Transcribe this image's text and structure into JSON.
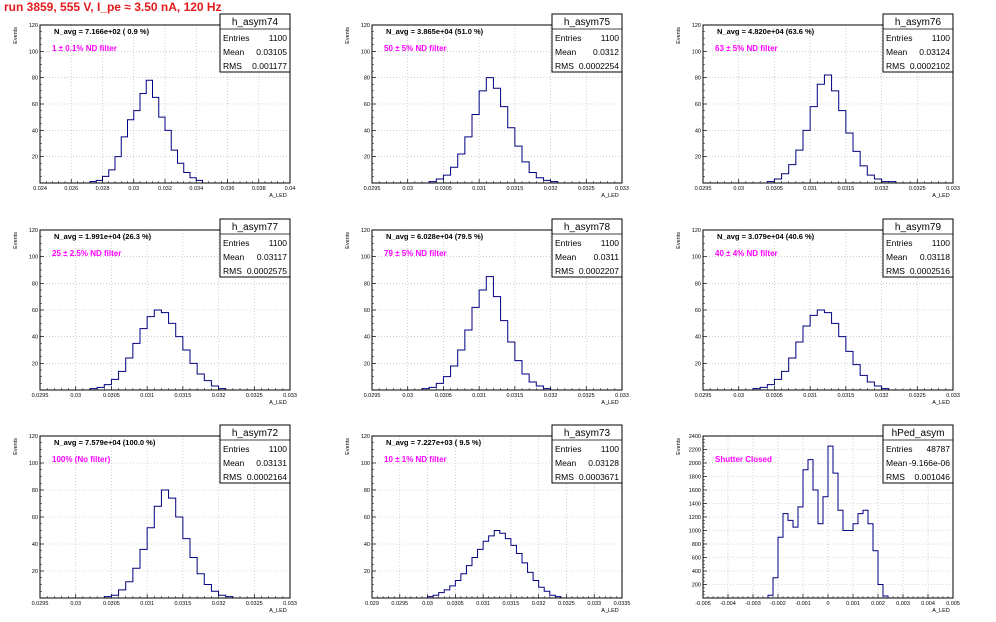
{
  "header": {
    "run_title": "run 3859,   555 V, I_pe ≈ 3.50 nA, 120 Hz"
  },
  "stat_labels": {
    "entries": "Entries",
    "mean": "Mean",
    "rms": "RMS"
  },
  "colors": {
    "histogram": "#000080",
    "filter_text": "#ff00ff",
    "run_title": "#e41a1c",
    "grid": "#b0b0b0",
    "frame": "#000000"
  },
  "chart_data": [
    {
      "type": "bar",
      "title": "h_asym74",
      "ylabel": "Events",
      "xlabel": "A_LED",
      "navg": "N_avg = 7.166e+02 ( 0.9 %)",
      "filter": "1 ± 0.1% ND filter",
      "stats": {
        "entries": "1100",
        "mean": "0.03105",
        "rms": "0.001177"
      },
      "xlim": [
        0.024,
        0.04
      ],
      "ylim": [
        0,
        120
      ],
      "xticks": [
        "0.024",
        "0.026",
        "0.028",
        "0.03",
        "0.032",
        "0.034",
        "0.036",
        "0.038",
        "0.04"
      ],
      "xtick_values": [
        0.024,
        0.026,
        0.028,
        0.03,
        0.032,
        0.034,
        0.036,
        0.038,
        0.04
      ],
      "yticks": [
        "20",
        "40",
        "60",
        "80",
        "100",
        "120"
      ],
      "ytick_values": [
        20,
        40,
        60,
        80,
        100,
        120
      ],
      "bin_centers": [
        0.0274,
        0.0278,
        0.0282,
        0.0286,
        0.029,
        0.0294,
        0.0298,
        0.0302,
        0.0306,
        0.031,
        0.0314,
        0.0318,
        0.0322,
        0.0326,
        0.033,
        0.0334,
        0.0338,
        0.0342
      ],
      "values": [
        1,
        2,
        5,
        10,
        20,
        35,
        48,
        55,
        68,
        78,
        65,
        50,
        40,
        25,
        15,
        8,
        4,
        2
      ]
    },
    {
      "type": "bar",
      "title": "h_asym75",
      "ylabel": "Events",
      "xlabel": "A_LED",
      "navg": "N_avg = 3.865e+04 (51.0 %)",
      "filter": "50 ± 5% ND filter",
      "stats": {
        "entries": "1100",
        "mean": "0.0312",
        "rms": "0.0002254"
      },
      "xlim": [
        0.0295,
        0.033
      ],
      "ylim": [
        0,
        120
      ],
      "xticks": [
        "0.0295",
        "0.03",
        "0.0305",
        "0.031",
        "0.0315",
        "0.032",
        "0.0325",
        "0.033"
      ],
      "xtick_values": [
        0.0295,
        0.03,
        0.0305,
        0.031,
        0.0315,
        0.032,
        0.0325,
        0.033
      ],
      "yticks": [
        "20",
        "40",
        "60",
        "80",
        "100",
        "120"
      ],
      "ytick_values": [
        20,
        40,
        60,
        80,
        100,
        120
      ],
      "bin_centers": [
        0.03035,
        0.03045,
        0.03055,
        0.03065,
        0.03075,
        0.03085,
        0.03095,
        0.03105,
        0.03115,
        0.03125,
        0.03135,
        0.03145,
        0.03155,
        0.03165,
        0.03175,
        0.03185,
        0.03195,
        0.03205
      ],
      "values": [
        1,
        3,
        6,
        12,
        22,
        35,
        52,
        70,
        80,
        72,
        58,
        42,
        28,
        16,
        8,
        4,
        2,
        1
      ]
    },
    {
      "type": "bar",
      "title": "h_asym76",
      "ylabel": "Events",
      "xlabel": "A_LED",
      "navg": "N_avg = 4.820e+04 (63.6 %)",
      "filter": "63 ± 5% ND filter",
      "stats": {
        "entries": "1100",
        "mean": "0.03124",
        "rms": "0.0002102"
      },
      "xlim": [
        0.0295,
        0.033
      ],
      "ylim": [
        0,
        120
      ],
      "xticks": [
        "0.0295",
        "0.03",
        "0.0305",
        "0.031",
        "0.0315",
        "0.032",
        "0.0325",
        "0.033"
      ],
      "xtick_values": [
        0.0295,
        0.03,
        0.0305,
        0.031,
        0.0315,
        0.032,
        0.0325,
        0.033
      ],
      "yticks": [
        "20",
        "40",
        "60",
        "80",
        "100",
        "120"
      ],
      "ytick_values": [
        20,
        40,
        60,
        80,
        100,
        120
      ],
      "bin_centers": [
        0.03045,
        0.03055,
        0.03065,
        0.03075,
        0.03085,
        0.03095,
        0.03105,
        0.03115,
        0.03125,
        0.03135,
        0.03145,
        0.03155,
        0.03165,
        0.03175,
        0.03185,
        0.03195,
        0.03205,
        0.03215
      ],
      "values": [
        1,
        3,
        7,
        14,
        25,
        40,
        58,
        75,
        82,
        70,
        55,
        38,
        24,
        13,
        6,
        3,
        1,
        1
      ]
    },
    {
      "type": "bar",
      "title": "h_asym77",
      "ylabel": "Events",
      "xlabel": "A_LED",
      "navg": "N_avg = 1.991e+04 (26.3 %)",
      "filter": "25 ± 2.5% ND filter",
      "stats": {
        "entries": "1100",
        "mean": "0.03117",
        "rms": "0.0002575"
      },
      "xlim": [
        0.0295,
        0.033
      ],
      "ylim": [
        0,
        120
      ],
      "xticks": [
        "0.0295",
        "0.03",
        "0.0305",
        "0.031",
        "0.0315",
        "0.032",
        "0.0325",
        "0.033"
      ],
      "xtick_values": [
        0.0295,
        0.03,
        0.0305,
        0.031,
        0.0315,
        0.032,
        0.0325,
        0.033
      ],
      "yticks": [
        "20",
        "40",
        "60",
        "80",
        "100",
        "120"
      ],
      "ytick_values": [
        20,
        40,
        60,
        80,
        100,
        120
      ],
      "bin_centers": [
        0.03025,
        0.03035,
        0.03045,
        0.03055,
        0.03065,
        0.03075,
        0.03085,
        0.03095,
        0.03105,
        0.03115,
        0.03125,
        0.03135,
        0.03145,
        0.03155,
        0.03165,
        0.03175,
        0.03185,
        0.03195,
        0.03205
      ],
      "values": [
        1,
        2,
        4,
        8,
        14,
        24,
        35,
        46,
        55,
        60,
        58,
        50,
        40,
        30,
        20,
        12,
        7,
        3,
        1
      ]
    },
    {
      "type": "bar",
      "title": "h_asym78",
      "ylabel": "Events",
      "xlabel": "A_LED",
      "navg": "N_avg = 6.028e+04 (79.5 %)",
      "filter": "79 ± 5% ND filter",
      "stats": {
        "entries": "1100",
        "mean": "0.0311",
        "rms": "0.0002207"
      },
      "xlim": [
        0.0295,
        0.033
      ],
      "ylim": [
        0,
        120
      ],
      "xticks": [
        "0.0295",
        "0.03",
        "0.0305",
        "0.031",
        "0.0315",
        "0.032",
        "0.0325",
        "0.033"
      ],
      "xtick_values": [
        0.0295,
        0.03,
        0.0305,
        0.031,
        0.0315,
        0.032,
        0.0325,
        0.033
      ],
      "yticks": [
        "20",
        "40",
        "60",
        "80",
        "100",
        "120"
      ],
      "ytick_values": [
        20,
        40,
        60,
        80,
        100,
        120
      ],
      "bin_centers": [
        0.03025,
        0.03035,
        0.03045,
        0.03055,
        0.03065,
        0.03075,
        0.03085,
        0.03095,
        0.03105,
        0.03115,
        0.03125,
        0.03135,
        0.03145,
        0.03155,
        0.03165,
        0.03175,
        0.03185,
        0.03195
      ],
      "values": [
        1,
        2,
        5,
        10,
        18,
        30,
        45,
        62,
        75,
        85,
        70,
        52,
        36,
        22,
        12,
        6,
        3,
        1
      ]
    },
    {
      "type": "bar",
      "title": "h_asym79",
      "ylabel": "Events",
      "xlabel": "A_LED",
      "navg": "N_avg = 3.079e+04 (40.6 %)",
      "filter": "40 ± 4% ND filter",
      "stats": {
        "entries": "1100",
        "mean": "0.03118",
        "rms": "0.0002516"
      },
      "xlim": [
        0.0295,
        0.033
      ],
      "ylim": [
        0,
        120
      ],
      "xticks": [
        "0.0295",
        "0.03",
        "0.0305",
        "0.031",
        "0.0315",
        "0.032",
        "0.0325",
        "0.033"
      ],
      "xtick_values": [
        0.0295,
        0.03,
        0.0305,
        0.031,
        0.0315,
        0.032,
        0.0325,
        0.033
      ],
      "yticks": [
        "20",
        "40",
        "60",
        "80",
        "100",
        "120"
      ],
      "ytick_values": [
        20,
        40,
        60,
        80,
        100,
        120
      ],
      "bin_centers": [
        0.03025,
        0.03035,
        0.03045,
        0.03055,
        0.03065,
        0.03075,
        0.03085,
        0.03095,
        0.03105,
        0.03115,
        0.03125,
        0.03135,
        0.03145,
        0.03155,
        0.03165,
        0.03175,
        0.03185,
        0.03195,
        0.03205
      ],
      "values": [
        1,
        2,
        4,
        8,
        14,
        24,
        36,
        48,
        56,
        60,
        58,
        50,
        40,
        29,
        19,
        11,
        6,
        3,
        1
      ]
    },
    {
      "type": "bar",
      "title": "h_asym72",
      "ylabel": "Events",
      "xlabel": "A_LED",
      "navg": "N_avg = 7.579e+04 (100.0 %)",
      "filter": "100% (No filter)",
      "stats": {
        "entries": "1100",
        "mean": "0.03131",
        "rms": "0.0002164"
      },
      "xlim": [
        0.0295,
        0.033
      ],
      "ylim": [
        0,
        120
      ],
      "xticks": [
        "0.0295",
        "0.03",
        "0.0305",
        "0.031",
        "0.0315",
        "0.032",
        "0.0325",
        "0.033"
      ],
      "xtick_values": [
        0.0295,
        0.03,
        0.0305,
        0.031,
        0.0315,
        0.032,
        0.0325,
        0.033
      ],
      "yticks": [
        "20",
        "40",
        "60",
        "80",
        "100",
        "120"
      ],
      "ytick_values": [
        20,
        40,
        60,
        80,
        100,
        120
      ],
      "bin_centers": [
        0.03045,
        0.03055,
        0.03065,
        0.03075,
        0.03085,
        0.03095,
        0.03105,
        0.03115,
        0.03125,
        0.03135,
        0.03145,
        0.03155,
        0.03165,
        0.03175,
        0.03185,
        0.03195,
        0.03205,
        0.03215
      ],
      "values": [
        1,
        2,
        6,
        12,
        22,
        36,
        52,
        68,
        80,
        74,
        60,
        44,
        30,
        18,
        10,
        5,
        2,
        1
      ]
    },
    {
      "type": "bar",
      "title": "h_asym73",
      "ylabel": "Events",
      "xlabel": "A_LED",
      "navg": "N_avg = 7.227e+03 ( 9.5 %)",
      "filter": "10 ± 1% ND filter",
      "stats": {
        "entries": "1100",
        "mean": "0.03128",
        "rms": "0.0003671"
      },
      "xlim": [
        0.029,
        0.0335
      ],
      "ylim": [
        0,
        120
      ],
      "xticks": [
        "0.029",
        "0.0295",
        "0.03",
        "0.0305",
        "0.031",
        "0.0315",
        "0.032",
        "0.0325",
        "0.033",
        "0.0335"
      ],
      "xtick_values": [
        0.029,
        0.0295,
        0.03,
        0.0305,
        0.031,
        0.0315,
        0.032,
        0.0325,
        0.033,
        0.0335
      ],
      "yticks": [
        "20",
        "40",
        "60",
        "80",
        "100",
        "120"
      ],
      "ytick_values": [
        20,
        40,
        60,
        80,
        100,
        120
      ],
      "bin_centers": [
        0.03005,
        0.03015,
        0.03025,
        0.03035,
        0.03045,
        0.03055,
        0.03065,
        0.03075,
        0.03085,
        0.03095,
        0.03105,
        0.03115,
        0.03125,
        0.03135,
        0.03145,
        0.03155,
        0.03165,
        0.03175,
        0.03185,
        0.03195,
        0.03205,
        0.03215,
        0.03225,
        0.03235
      ],
      "values": [
        1,
        2,
        4,
        6,
        9,
        13,
        18,
        24,
        30,
        36,
        42,
        46,
        50,
        48,
        44,
        39,
        33,
        26,
        19,
        13,
        8,
        5,
        2,
        1
      ]
    },
    {
      "type": "bar",
      "title": "hPed_asym",
      "ylabel": "Events",
      "xlabel": "A_LED",
      "navg": "",
      "filter": "Shutter Closed",
      "stats": {
        "entries": "48787",
        "mean": "-9.166e-06",
        "rms": "0.001046"
      },
      "xlim": [
        -0.005,
        0.005
      ],
      "ylim": [
        0,
        2400
      ],
      "xticks": [
        "-0.005",
        "-0.004",
        "-0.003",
        "-0.002",
        "-0.001",
        "0",
        "0.001",
        "0.002",
        "0.003",
        "0.004",
        "0.005"
      ],
      "xtick_values": [
        -0.005,
        -0.004,
        -0.003,
        -0.002,
        -0.001,
        0,
        0.001,
        0.002,
        0.003,
        0.004,
        0.005
      ],
      "yticks": [
        "200",
        "400",
        "600",
        "800",
        "1000",
        "1200",
        "1400",
        "1600",
        "1800",
        "2000",
        "2200",
        "2400"
      ],
      "ytick_values": [
        200,
        400,
        600,
        800,
        1000,
        1200,
        1400,
        1600,
        1800,
        2000,
        2200,
        2400
      ],
      "bin_centers": [
        -0.0023,
        -0.0021,
        -0.0019,
        -0.0017,
        -0.0015,
        -0.0013,
        -0.0011,
        -0.0009,
        -0.0007,
        -0.0005,
        -0.0003,
        -0.0001,
        0.0001,
        0.0003,
        0.0005,
        0.0007,
        0.0009,
        0.0011,
        0.0013,
        0.0015,
        0.0017,
        0.0019,
        0.0021,
        0.0023
      ],
      "values": [
        40,
        300,
        900,
        1250,
        1150,
        1050,
        1350,
        1900,
        2050,
        1600,
        1100,
        1500,
        2250,
        1850,
        1300,
        1000,
        1000,
        1100,
        1250,
        1300,
        1100,
        700,
        200,
        30
      ]
    }
  ]
}
